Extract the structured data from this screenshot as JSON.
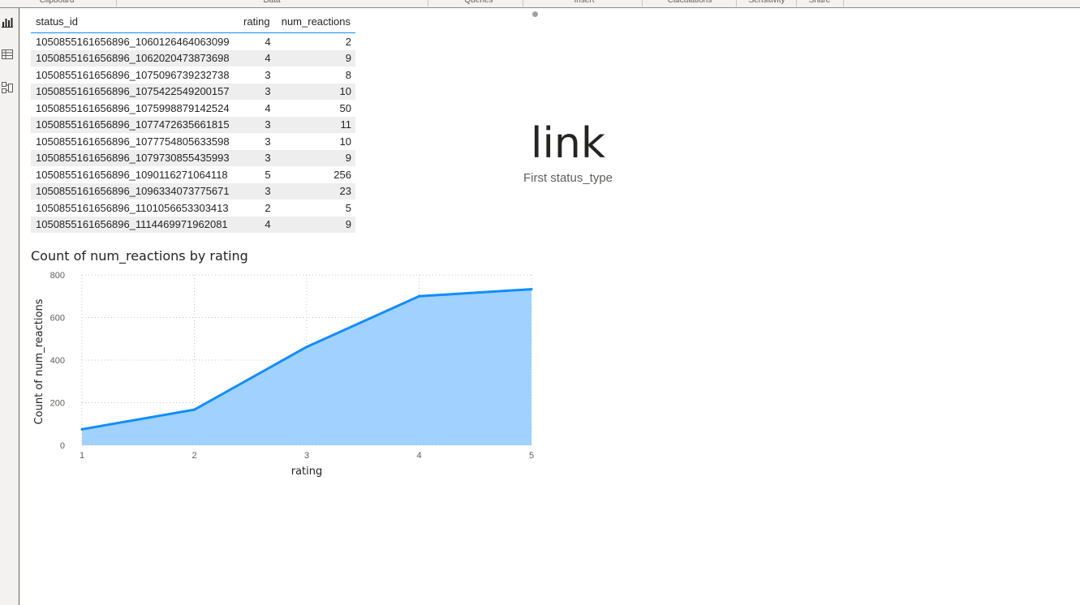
{
  "ribbon": {
    "groups": [
      "Clipboard",
      "Data",
      "Queries",
      "Insert",
      "Calculations",
      "Sensitivity",
      "Share"
    ]
  },
  "rail": {
    "icons": [
      "report-view-icon",
      "table-view-icon",
      "model-view-icon"
    ]
  },
  "table": {
    "columns": [
      "status_id",
      "rating",
      "num_reactions"
    ],
    "rows": [
      [
        "1050855161656896_1060126464063099",
        "4",
        "2"
      ],
      [
        "1050855161656896_1062020473873698",
        "4",
        "9"
      ],
      [
        "1050855161656896_1075096739232738",
        "3",
        "8"
      ],
      [
        "1050855161656896_1075422549200157",
        "3",
        "10"
      ],
      [
        "1050855161656896_1075998879142524",
        "4",
        "50"
      ],
      [
        "1050855161656896_1077472635661815",
        "3",
        "11"
      ],
      [
        "1050855161656896_1077754805633598",
        "3",
        "10"
      ],
      [
        "1050855161656896_1079730855435993",
        "3",
        "9"
      ],
      [
        "1050855161656896_1090116271064118",
        "5",
        "256"
      ],
      [
        "1050855161656896_1096334073775671",
        "3",
        "23"
      ],
      [
        "1050855161656896_1101056653303413",
        "2",
        "5"
      ],
      [
        "1050855161656896_1114469971962081",
        "4",
        "9"
      ]
    ]
  },
  "card": {
    "value": "link",
    "label": "First status_type"
  },
  "chart": {
    "title": "Count of num_reactions by rating"
  },
  "chart_data": {
    "type": "area",
    "title": "Count of num_reactions by rating",
    "xlabel": "rating",
    "ylabel": "Count of num_reactions",
    "x": [
      1,
      2,
      3,
      4,
      5
    ],
    "series": [
      {
        "values": [
          75,
          167,
          462,
          700,
          733
        ]
      }
    ],
    "ylim": [
      0,
      800
    ],
    "yticks": [
      0,
      200,
      400,
      600,
      800
    ],
    "xticks": [
      1,
      2,
      3,
      4,
      5
    ],
    "grid": true,
    "line_color": "#118dff",
    "fill_color": "#a0d1ff"
  },
  "colors": {
    "accent": "#118dff",
    "row_alt": "#eeeeee"
  }
}
